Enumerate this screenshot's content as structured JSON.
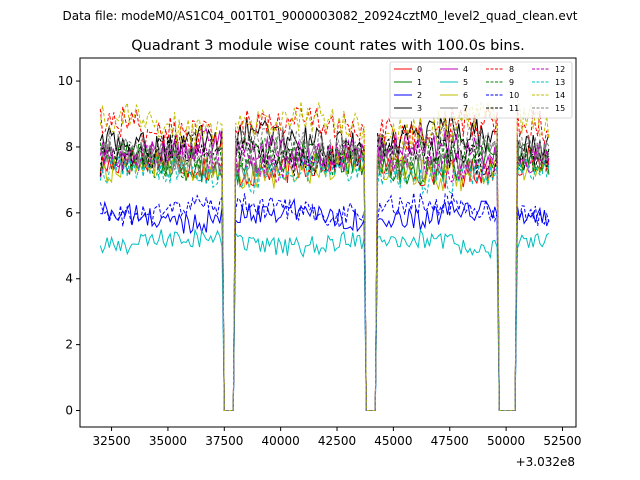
{
  "chart_data": {
    "type": "line",
    "suptitle": "Data file: modeM0/AS1C04_001T01_9000003082_20924cztM0_level2_quad_clean.evt",
    "title": "Quadrant 3 module wise count rates with 100.0s bins.",
    "xlabel": "",
    "ylabel": "",
    "x_offset_label": "+3.032e8",
    "xlim": [
      31100,
      53100
    ],
    "ylim": [
      -0.5,
      10.7
    ],
    "x_ticks": [
      32500,
      35000,
      37500,
      40000,
      42500,
      45000,
      47500,
      50000,
      52500
    ],
    "x_tick_labels": [
      "32500",
      "35000",
      "37500",
      "40000",
      "42500",
      "45000",
      "47500",
      "50000",
      "52500"
    ],
    "y_ticks": [
      0,
      2,
      4,
      6,
      8,
      10
    ],
    "y_tick_labels": [
      "0",
      "2",
      "4",
      "6",
      "8",
      "10"
    ],
    "bin_size": 100,
    "x_start": 32000,
    "x_end": 51900,
    "gaps": [
      [
        37500,
        37900
      ],
      [
        43800,
        44200
      ],
      [
        49700,
        50400
      ]
    ],
    "legend_location": "top-right",
    "series": [
      {
        "name": "0",
        "color": "#ff0000",
        "dash": "solid",
        "mean": 7.4
      },
      {
        "name": "1",
        "color": "#008000",
        "dash": "solid",
        "mean": 7.5
      },
      {
        "name": "2",
        "color": "#0000ff",
        "dash": "solid",
        "mean": 5.9
      },
      {
        "name": "3",
        "color": "#000000",
        "dash": "solid",
        "mean": 8.2
      },
      {
        "name": "4",
        "color": "#bf00bf",
        "dash": "solid",
        "mean": 7.9
      },
      {
        "name": "5",
        "color": "#00bfbf",
        "dash": "solid",
        "mean": 5.1
      },
      {
        "name": "6",
        "color": "#bfbf00",
        "dash": "solid",
        "mean": 7.3
      },
      {
        "name": "7",
        "color": "#808080",
        "dash": "solid",
        "mean": 7.6
      },
      {
        "name": "8",
        "color": "#ff0000",
        "dash": "dashed",
        "mean": 8.6
      },
      {
        "name": "9",
        "color": "#008000",
        "dash": "dashed",
        "mean": 7.7
      },
      {
        "name": "10",
        "color": "#0000ff",
        "dash": "dashed",
        "mean": 6.1
      },
      {
        "name": "11",
        "color": "#000000",
        "dash": "dashed",
        "mean": 7.8
      },
      {
        "name": "12",
        "color": "#bf00bf",
        "dash": "dashed",
        "mean": 7.6
      },
      {
        "name": "13",
        "color": "#00bfbf",
        "dash": "dashed",
        "mean": 7.2
      },
      {
        "name": "14",
        "color": "#bfbf00",
        "dash": "dashed",
        "mean": 8.7
      },
      {
        "name": "15",
        "color": "#808080",
        "dash": "dashed",
        "mean": 8.0
      }
    ]
  }
}
